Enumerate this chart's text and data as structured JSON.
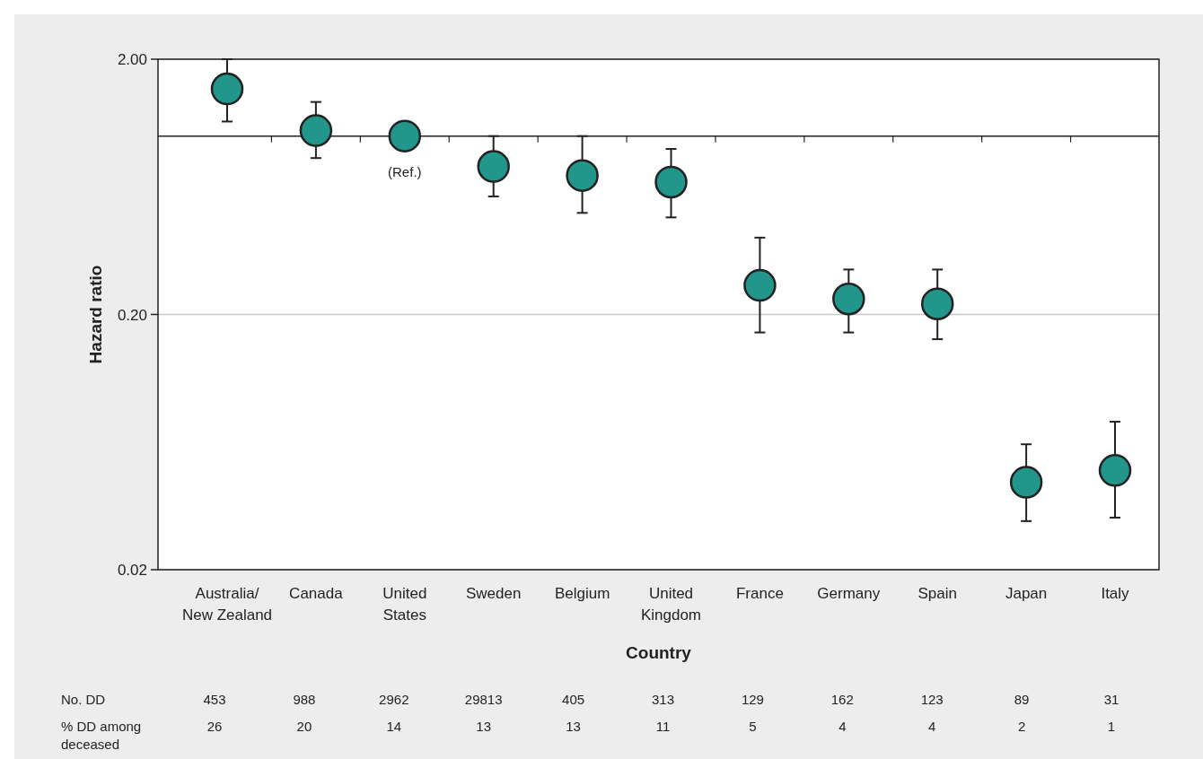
{
  "chart_data": [
    {
      "type": "scatter",
      "xlabel": "Country",
      "ylabel": "Hazard ratio",
      "log": "y",
      "grid": "y",
      "marker": "circle",
      "categories": [
        "Australia/\nNew Zealand",
        "Canada",
        "United\nStates",
        "Sweden",
        "Belgium",
        "United\nKingdom",
        "France",
        "Germany",
        "Spain",
        "Japan",
        "Italy"
      ],
      "ylim": [
        0.02,
        2
      ],
      "yticks": [
        {
          "value": 0.02,
          "label": "0.02"
        },
        {
          "value": 0.2,
          "label": "0.20"
        },
        {
          "value": 2,
          "label": "2.00"
        }
      ],
      "series": [
        {
          "color": "#23968c",
          "values": [
            1.53,
            1.05,
            1.0,
            0.76,
            0.7,
            0.66,
            0.26,
            0.23,
            0.22,
            0.044,
            0.049
          ],
          "errors": [
            [
              1.14,
              2.0
            ],
            [
              0.82,
              1.36
            ],
            null,
            [
              0.58,
              1.0
            ],
            [
              0.5,
              1.0
            ],
            [
              0.48,
              0.89
            ],
            [
              0.17,
              0.4
            ],
            [
              0.17,
              0.3
            ],
            [
              0.16,
              0.3
            ],
            [
              0.031,
              0.062
            ],
            [
              0.032,
              0.076
            ]
          ]
        }
      ],
      "ref_lines": [
        {
          "axis": "y",
          "value": 1,
          "label": null,
          "color": "#222222"
        }
      ],
      "annotations": [
        {
          "text": "(Ref.)",
          "x": "United\nStates",
          "y": 1
        }
      ]
    },
    {
      "type": "other",
      "annotations": [
        "No. DD",
        "453",
        "988",
        "2962",
        "29813",
        "405",
        "313",
        "129",
        "162",
        "123",
        "89",
        "31",
        "% DD among\ndeceased",
        "26",
        "20",
        "14",
        "13",
        "13",
        "11",
        "5",
        "4",
        "4",
        "2",
        "1"
      ]
    }
  ]
}
